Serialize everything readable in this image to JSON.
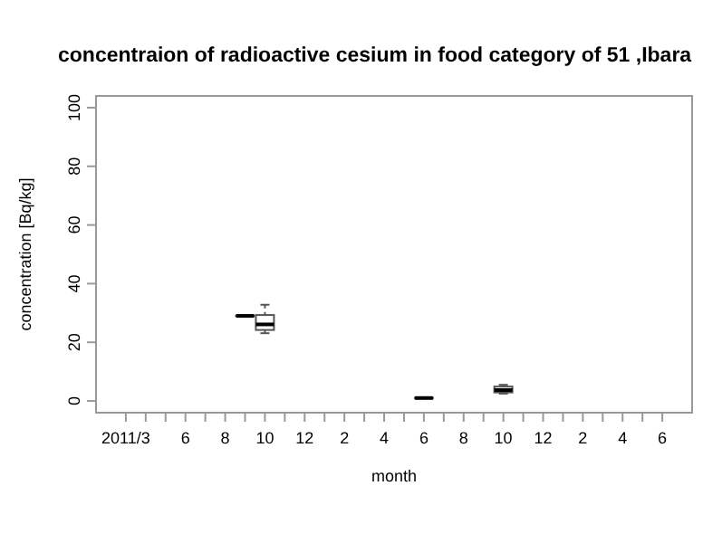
{
  "chart_data": {
    "type": "box",
    "title": "concentraion of radioactive cesium in food category of  51 ,Ibara",
    "xlabel": "month",
    "ylabel": "concentration [Bq/kg]",
    "categories": [
      "2011/3",
      null,
      null,
      "6",
      null,
      "8",
      null,
      "10",
      null,
      "12",
      null,
      "2",
      null,
      "4",
      null,
      "6",
      null,
      "8",
      null,
      "10",
      null,
      "12",
      null,
      "2",
      null,
      "4",
      null,
      "6"
    ],
    "boxes": [
      null,
      null,
      null,
      null,
      null,
      null,
      {
        "low": 29,
        "q1": 29,
        "median": 29,
        "q3": 29,
        "high": 29
      },
      {
        "low": 23.1,
        "q1": 24.2,
        "median": 26.1,
        "q3": 29.3,
        "high": 32.8
      },
      null,
      null,
      null,
      null,
      null,
      null,
      null,
      {
        "low": 1,
        "q1": 1,
        "median": 1,
        "q3": 1,
        "high": 1
      },
      null,
      null,
      null,
      {
        "low": 2.5,
        "q1": 2.9,
        "median": 3.7,
        "q3": 4.9,
        "high": 5.5
      },
      null,
      null,
      null,
      null,
      null,
      null,
      null,
      null
    ],
    "ylim": [
      -4,
      104
    ],
    "yticks": [
      0,
      20,
      40,
      60,
      80,
      100
    ],
    "grid": false
  }
}
